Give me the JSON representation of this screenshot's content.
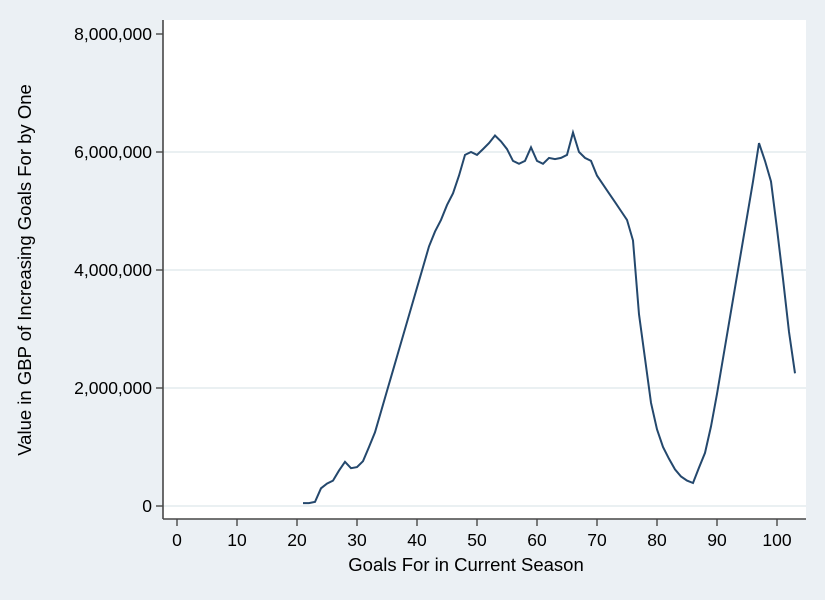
{
  "colors": {
    "background": "#ebf0f4",
    "plot_background": "#ffffff",
    "grid": "#dee6eb",
    "axis": "#474747",
    "line": "#24486d",
    "text": "#000000"
  },
  "chart_data": {
    "type": "line",
    "title": "",
    "xlabel": "Goals For in Current Season",
    "ylabel": "Value in GBP of Increasing Goals For by One",
    "xlim": [
      0,
      104.8
    ],
    "ylim": [
      0,
      8240000
    ],
    "grid": "horizontal",
    "legend": "none",
    "x_ticks": [
      {
        "value": 0,
        "label": "0"
      },
      {
        "value": 10,
        "label": "10"
      },
      {
        "value": 20,
        "label": "20"
      },
      {
        "value": 30,
        "label": "30"
      },
      {
        "value": 40,
        "label": "40"
      },
      {
        "value": 50,
        "label": "50"
      },
      {
        "value": 60,
        "label": "60"
      },
      {
        "value": 70,
        "label": "70"
      },
      {
        "value": 80,
        "label": "80"
      },
      {
        "value": 90,
        "label": "90"
      },
      {
        "value": 100,
        "label": "100"
      }
    ],
    "y_ticks": [
      {
        "value": 0,
        "label": "0",
        "grid": true
      },
      {
        "value": 2000000,
        "label": "2,000,000",
        "grid": true
      },
      {
        "value": 4000000,
        "label": "4,000,000",
        "grid": true
      },
      {
        "value": 6000000,
        "label": "6,000,000",
        "grid": true
      },
      {
        "value": 8000000,
        "label": "8,000,000",
        "grid": false
      }
    ],
    "series": [
      {
        "name": "Value in GBP of Increasing Goals For by One",
        "color": "#24486d",
        "x": [
          21,
          22,
          23,
          24,
          25,
          26,
          27,
          28,
          29,
          30,
          31,
          32,
          33,
          34,
          35,
          36,
          37,
          38,
          39,
          40,
          41,
          42,
          43,
          44,
          45,
          46,
          47,
          48,
          49,
          50,
          51,
          52,
          53,
          54,
          55,
          56,
          57,
          58,
          59,
          60,
          61,
          62,
          63,
          64,
          65,
          66,
          67,
          68,
          69,
          70,
          71,
          72,
          73,
          74,
          75,
          76,
          77,
          78,
          79,
          80,
          81,
          82,
          83,
          84,
          85,
          86,
          87,
          88,
          89,
          90,
          91,
          92,
          93,
          94,
          95,
          96,
          97,
          98,
          99,
          100,
          101,
          102,
          103
        ],
        "y": [
          50000,
          50000,
          70000,
          300000,
          380000,
          430000,
          600000,
          750000,
          640000,
          660000,
          760000,
          1000000,
          1250000,
          1600000,
          1950000,
          2300000,
          2650000,
          3000000,
          3350000,
          3700000,
          4050000,
          4400000,
          4650000,
          4850000,
          5100000,
          5300000,
          5600000,
          5950000,
          6000000,
          5950000,
          6050000,
          6150000,
          6280000,
          6180000,
          6050000,
          5850000,
          5800000,
          5850000,
          6080000,
          5850000,
          5800000,
          5900000,
          5880000,
          5900000,
          5950000,
          6330000,
          6000000,
          5900000,
          5850000,
          5600000,
          5450000,
          5300000,
          5150000,
          5000000,
          4850000,
          4500000,
          3250000,
          2500000,
          1750000,
          1300000,
          1000000,
          800000,
          620000,
          500000,
          430000,
          390000,
          650000,
          900000,
          1350000,
          1900000,
          2500000,
          3100000,
          3700000,
          4300000,
          4900000,
          5500000,
          6150000,
          5850000,
          5500000,
          4700000,
          3850000,
          2950000,
          2250000
        ]
      }
    ]
  }
}
